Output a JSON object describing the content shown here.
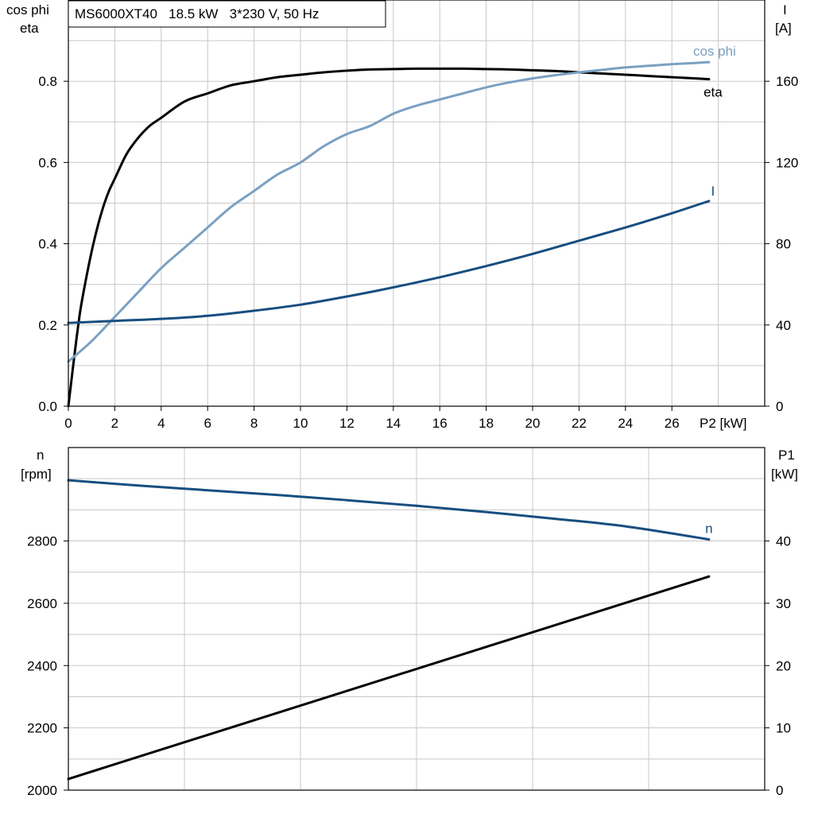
{
  "header": {
    "title": "MS6000XT40   18.5 kW   3*230 V, 50 Hz"
  },
  "colors": {
    "eta": "#000000",
    "cos_phi": "#7aa0c2",
    "I": "#174e80",
    "n": "#174e80",
    "P1": "#000000",
    "grid": "#c8c8c8"
  },
  "chart_data": [
    {
      "type": "line",
      "title": "MS6000XT40   18.5 kW   3*230 V, 50 Hz",
      "xlabel": "P2 [kW]",
      "x_ticks": [
        "0",
        "2",
        "4",
        "6",
        "8",
        "10",
        "12",
        "14",
        "16",
        "18",
        "20",
        "22",
        "24",
        "26"
      ],
      "xlim": [
        0,
        30
      ],
      "ylabel_left": [
        "cos phi",
        "eta"
      ],
      "ylim_left": [
        0,
        1.0
      ],
      "y_ticks_left": [
        "0.0",
        "0.2",
        "0.4",
        "0.6",
        "0.8"
      ],
      "ylabel_right": [
        "I",
        "[A]"
      ],
      "ylim_right": [
        0,
        200
      ],
      "y_ticks_right": [
        "0",
        "40",
        "80",
        "120",
        "160"
      ],
      "grid": true,
      "series": [
        {
          "name": "eta",
          "axis": "left",
          "color": "#000000",
          "x": [
            0,
            0.25,
            0.5,
            0.75,
            1,
            1.25,
            1.5,
            1.75,
            2,
            2.5,
            3,
            3.5,
            4,
            5,
            6,
            7,
            8,
            9,
            10,
            11,
            12,
            13,
            14,
            15,
            16,
            17,
            18,
            19,
            20,
            21,
            22,
            23,
            24,
            25,
            26,
            27,
            27.6
          ],
          "y": [
            0.0,
            0.12,
            0.23,
            0.31,
            0.38,
            0.44,
            0.49,
            0.53,
            0.56,
            0.62,
            0.66,
            0.69,
            0.71,
            0.75,
            0.77,
            0.79,
            0.8,
            0.81,
            0.816,
            0.822,
            0.826,
            0.829,
            0.83,
            0.831,
            0.831,
            0.831,
            0.83,
            0.829,
            0.827,
            0.825,
            0.822,
            0.819,
            0.816,
            0.813,
            0.81,
            0.807,
            0.805
          ]
        },
        {
          "name": "cos phi",
          "axis": "left",
          "color": "#7aa0c2",
          "x": [
            0,
            1,
            2,
            3,
            4,
            5,
            6,
            7,
            8,
            9,
            10,
            11,
            12,
            13,
            14,
            15,
            16,
            17,
            18,
            19,
            20,
            21,
            22,
            23,
            24,
            25,
            26,
            27,
            27.6
          ],
          "y": [
            0.11,
            0.16,
            0.22,
            0.28,
            0.34,
            0.39,
            0.44,
            0.49,
            0.53,
            0.57,
            0.6,
            0.64,
            0.67,
            0.69,
            0.72,
            0.74,
            0.755,
            0.77,
            0.785,
            0.797,
            0.807,
            0.815,
            0.822,
            0.828,
            0.834,
            0.838,
            0.842,
            0.845,
            0.847
          ]
        },
        {
          "name": "I",
          "axis": "right",
          "color": "#174e80",
          "x": [
            0,
            2,
            4,
            6,
            8,
            10,
            12,
            14,
            16,
            18,
            20,
            22,
            24,
            26,
            27.6
          ],
          "y": [
            41,
            42,
            43,
            44.5,
            47,
            50,
            54,
            58.5,
            63.5,
            69,
            75,
            81.5,
            88,
            95,
            101
          ]
        }
      ]
    },
    {
      "type": "line",
      "xlim": [
        0,
        30
      ],
      "ylabel_left": [
        "n",
        "[rpm]"
      ],
      "ylim_left": [
        2000,
        3100
      ],
      "y_ticks_left": [
        "2000",
        "2200",
        "2400",
        "2600",
        "2800"
      ],
      "ylabel_right": [
        "P1",
        "[kW]"
      ],
      "ylim_right": [
        0,
        55
      ],
      "y_ticks_right": [
        "0",
        "10",
        "20",
        "30",
        "40"
      ],
      "grid": true,
      "series": [
        {
          "name": "n",
          "axis": "left",
          "color": "#174e80",
          "x": [
            0,
            3,
            6,
            9,
            12,
            15,
            18,
            21,
            24,
            27.6
          ],
          "y": [
            2995,
            2978,
            2963,
            2948,
            2931,
            2913,
            2893,
            2871,
            2847,
            2805
          ]
        },
        {
          "name": "",
          "axis": "right",
          "color": "#000000",
          "x": [
            0,
            27.6
          ],
          "y": [
            1.8,
            34.3
          ]
        }
      ]
    }
  ]
}
